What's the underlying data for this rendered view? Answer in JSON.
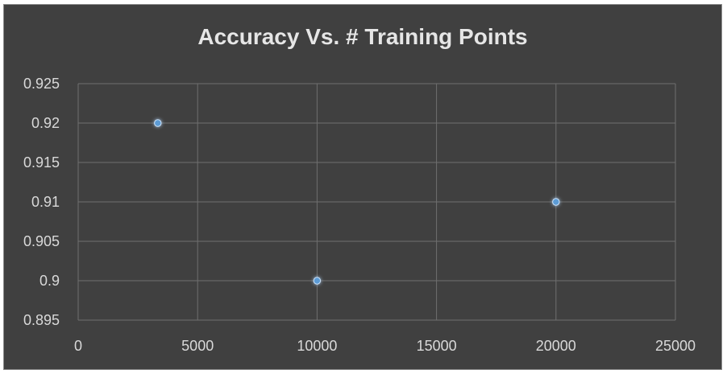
{
  "chart_data": {
    "type": "scatter",
    "title": "Accuracy Vs. # Training Points",
    "xlabel": "",
    "ylabel": "",
    "xlim": [
      0,
      25000
    ],
    "ylim": [
      0.895,
      0.925
    ],
    "x_ticks": [
      "0",
      "5000",
      "10000",
      "15000",
      "20000",
      "25000"
    ],
    "y_ticks": [
      "0.925",
      "0.92",
      "0.915",
      "0.91",
      "0.905",
      "0.9",
      "0.895"
    ],
    "grid": true,
    "series": [
      {
        "x": [
          3333,
          10000,
          20000
        ],
        "y": [
          0.92,
          0.9,
          0.91
        ]
      }
    ],
    "colors": {
      "background": "#404040",
      "grid": "#6f6f6f",
      "marker": "#5b9bd5",
      "text": "#d9d9d9"
    }
  }
}
